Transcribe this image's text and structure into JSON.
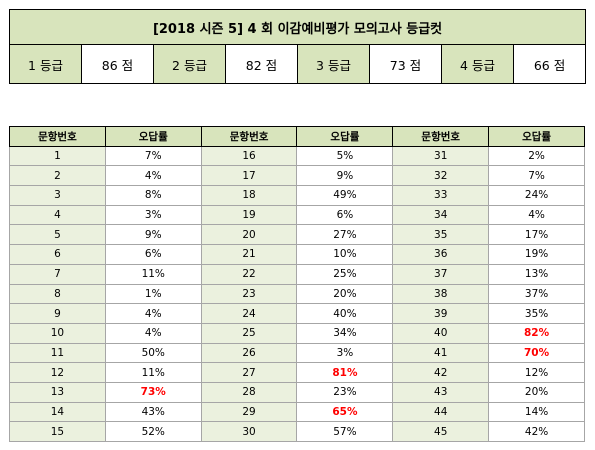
{
  "cutoff": {
    "title": "[2018 시즌 5] 4 회  이감예비평가  모의고사  등급컷",
    "grades": [
      {
        "grade": "1 등급",
        "score": "86 점"
      },
      {
        "grade": "2 등급",
        "score": "82 점"
      },
      {
        "grade": "3 등급",
        "score": "73 점"
      },
      {
        "grade": "4 등급",
        "score": "66 점"
      }
    ]
  },
  "table": {
    "headers": [
      "문항번호",
      "오답률",
      "문항번호",
      "오답률",
      "문항번호",
      "오답률"
    ],
    "rows": [
      [
        {
          "n": "1",
          "r": "7%"
        },
        {
          "n": "16",
          "r": "5%"
        },
        {
          "n": "31",
          "r": "2%"
        }
      ],
      [
        {
          "n": "2",
          "r": "4%"
        },
        {
          "n": "17",
          "r": "9%"
        },
        {
          "n": "32",
          "r": "7%"
        }
      ],
      [
        {
          "n": "3",
          "r": "8%"
        },
        {
          "n": "18",
          "r": "49%"
        },
        {
          "n": "33",
          "r": "24%"
        }
      ],
      [
        {
          "n": "4",
          "r": "3%"
        },
        {
          "n": "19",
          "r": "6%"
        },
        {
          "n": "34",
          "r": "4%"
        }
      ],
      [
        {
          "n": "5",
          "r": "9%"
        },
        {
          "n": "20",
          "r": "27%"
        },
        {
          "n": "35",
          "r": "17%"
        }
      ],
      [
        {
          "n": "6",
          "r": "6%"
        },
        {
          "n": "21",
          "r": "10%"
        },
        {
          "n": "36",
          "r": "19%"
        }
      ],
      [
        {
          "n": "7",
          "r": "11%"
        },
        {
          "n": "22",
          "r": "25%"
        },
        {
          "n": "37",
          "r": "13%"
        }
      ],
      [
        {
          "n": "8",
          "r": "1%"
        },
        {
          "n": "23",
          "r": "20%"
        },
        {
          "n": "38",
          "r": "37%"
        }
      ],
      [
        {
          "n": "9",
          "r": "4%"
        },
        {
          "n": "24",
          "r": "40%"
        },
        {
          "n": "39",
          "r": "35%"
        }
      ],
      [
        {
          "n": "10",
          "r": "4%"
        },
        {
          "n": "25",
          "r": "34%"
        },
        {
          "n": "40",
          "r": "82%",
          "hot": true
        }
      ],
      [
        {
          "n": "11",
          "r": "50%"
        },
        {
          "n": "26",
          "r": "3%"
        },
        {
          "n": "41",
          "r": "70%",
          "hot": true
        }
      ],
      [
        {
          "n": "12",
          "r": "11%"
        },
        {
          "n": "27",
          "r": "81%",
          "hot": true
        },
        {
          "n": "42",
          "r": "12%"
        }
      ],
      [
        {
          "n": "13",
          "r": "73%",
          "hot": true
        },
        {
          "n": "28",
          "r": "23%"
        },
        {
          "n": "43",
          "r": "20%"
        }
      ],
      [
        {
          "n": "14",
          "r": "43%"
        },
        {
          "n": "29",
          "r": "65%",
          "hot": true
        },
        {
          "n": "44",
          "r": "14%"
        }
      ],
      [
        {
          "n": "15",
          "r": "52%"
        },
        {
          "n": "30",
          "r": "57%"
        },
        {
          "n": "45",
          "r": "42%"
        }
      ]
    ]
  },
  "colors": {
    "header_green": "#d8e4bc",
    "number_cell_green": "#ebf1de",
    "highlight_red": "#ff0000"
  }
}
